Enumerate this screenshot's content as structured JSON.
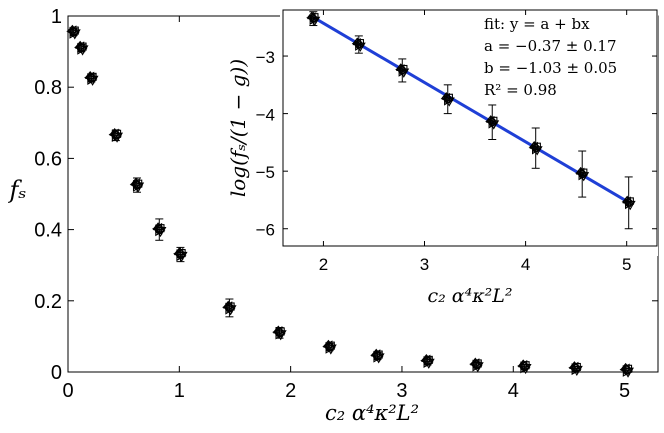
{
  "chart_data": [
    {
      "type": "scatter",
      "panel": "main",
      "title": "",
      "xlabel": "c₂ α⁴κ²L²",
      "ylabel": "fₛ",
      "xlim": [
        0,
        5.3
      ],
      "ylim": [
        0,
        1
      ],
      "xticks": [
        "0",
        "1",
        "2",
        "3",
        "4",
        "5"
      ],
      "yticks": [
        "0",
        "0.2",
        "0.4",
        "0.6",
        "0.8",
        "1"
      ],
      "grid": false,
      "markers": [
        "diamond",
        "circle",
        "triangle-down",
        "triangle-left",
        "triangle-right",
        "square",
        "cross"
      ],
      "x": [
        0.05,
        0.12,
        0.21,
        0.43,
        0.62,
        0.82,
        1.01,
        1.45,
        1.9,
        2.35,
        2.78,
        3.23,
        3.67,
        4.1,
        4.56,
        5.02
      ],
      "y": [
        0.955,
        0.91,
        0.825,
        0.665,
        0.525,
        0.4,
        0.33,
        0.18,
        0.11,
        0.07,
        0.045,
        0.03,
        0.02,
        0.015,
        0.01,
        0.005
      ],
      "yerr": [
        0.01,
        0.01,
        0.01,
        0.015,
        0.02,
        0.03,
        0.02,
        0.025,
        0.015,
        0.01,
        0.01,
        0.01,
        0.008,
        0.006,
        0.005,
        0.005
      ]
    },
    {
      "type": "scatter",
      "panel": "inset",
      "title": "",
      "xlabel": "c₂ α⁴κ²L²",
      "ylabel": "log(fₛ/(1 − g))",
      "xlim": [
        1.6,
        5.3
      ],
      "ylim": [
        -6.3,
        -2.2
      ],
      "xticks": [
        "2",
        "3",
        "4",
        "5"
      ],
      "yticks": [
        "−3",
        "−4",
        "−5",
        "−6"
      ],
      "grid": false,
      "x": [
        1.9,
        2.35,
        2.78,
        3.23,
        3.67,
        4.1,
        4.56,
        5.02
      ],
      "y": [
        -2.35,
        -2.8,
        -3.25,
        -3.75,
        -4.15,
        -4.6,
        -5.05,
        -5.55
      ],
      "yerr": [
        0.12,
        0.15,
        0.2,
        0.25,
        0.3,
        0.35,
        0.4,
        0.45
      ],
      "fit": {
        "a": -0.37,
        "b": -1.03,
        "color": "#1f3fd6",
        "x_range": [
          1.9,
          5.02
        ]
      },
      "annotation": {
        "line1": "fit: y = a + bx",
        "line2": "a = −0.37 ± 0.17",
        "line3": "b = −1.03 ± 0.05",
        "line4": "R² = 0.98"
      }
    }
  ]
}
